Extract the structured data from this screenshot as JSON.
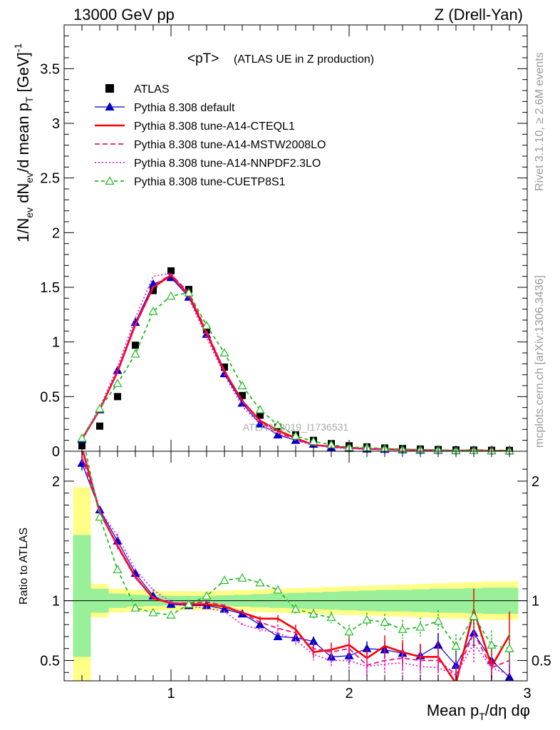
{
  "header": {
    "left": "13000 GeV pp",
    "right": "Z (Drell-Yan)"
  },
  "side_text": {
    "rivet": "Rivet 3.1.10, ≥ 2.6M events",
    "mcplots": "mcplots.cern.ch [arXiv:1306.3436]"
  },
  "watermark": "ATLAS_2019_I1736531",
  "colors": {
    "atlas": "#000000",
    "default": "#0000cc",
    "cteql1": "#ff0000",
    "mstw": "#ee1177",
    "nnpdf": "#dd22dd",
    "cuetp": "#22bb22",
    "band_inner": "#99f099",
    "band_outer": "#ffff88"
  },
  "chart_data": [
    {
      "id": "main",
      "type": "line",
      "title": "<pT>",
      "subtitle": "(ATLAS UE in Z production)",
      "xlabel": "",
      "ylabel": "1/N_ev dN_ev/d mean p_T [GeV]^-1",
      "xlim": [
        0.4,
        3.0
      ],
      "ylim": [
        0,
        3.9
      ],
      "yticks": [
        0,
        0.5,
        1,
        1.5,
        2,
        2.5,
        3,
        3.5
      ],
      "ytick_labels": [
        "0",
        "0.5",
        "1",
        "1.5",
        "2",
        "2.5",
        "3",
        "3.5"
      ],
      "x": [
        0.5,
        0.6,
        0.7,
        0.8,
        0.9,
        1.0,
        1.1,
        1.2,
        1.3,
        1.4,
        1.5,
        1.6,
        1.7,
        1.8,
        1.9,
        2.0,
        2.1,
        2.2,
        2.3,
        2.4,
        2.5,
        2.6,
        2.7,
        2.8,
        2.9
      ],
      "series": [
        {
          "name": "ATLAS",
          "style": "marker-square",
          "color_key": "atlas",
          "values": [
            0.05,
            0.23,
            0.5,
            0.97,
            1.47,
            1.65,
            1.48,
            1.11,
            0.77,
            0.51,
            0.33,
            0.22,
            0.15,
            0.1,
            0.07,
            0.05,
            0.04,
            0.03,
            0.025,
            0.02,
            0.016,
            0.013,
            0.011,
            0.009,
            0.008
          ]
        },
        {
          "name": "Pythia 8.308 default",
          "style": "line-triangle",
          "color_key": "default",
          "values": [
            0.11,
            0.38,
            0.74,
            1.18,
            1.53,
            1.59,
            1.41,
            1.07,
            0.71,
            0.44,
            0.25,
            0.15,
            0.1,
            0.065,
            0.037,
            0.027,
            0.021,
            0.018,
            0.014,
            0.011,
            0.01,
            0.006,
            0.008,
            0.005,
            0.003
          ]
        },
        {
          "name": "Pythia 8.308 tune-A14-CTEQL1",
          "style": "line-solid",
          "color_key": "cteql1",
          "values": [
            0.11,
            0.38,
            0.73,
            1.16,
            1.5,
            1.61,
            1.43,
            1.08,
            0.73,
            0.46,
            0.28,
            0.19,
            0.12,
            0.057,
            0.044,
            0.032,
            0.021,
            0.019,
            0.015,
            0.011,
            0.008,
            0.004,
            0.01,
            0.004,
            0.006
          ]
        },
        {
          "name": "Pythia 8.308 tune-A14-MSTW2008LO",
          "style": "line-dashed",
          "color_key": "mstw",
          "values": [
            0.11,
            0.38,
            0.72,
            1.15,
            1.51,
            1.62,
            1.45,
            1.1,
            0.74,
            0.46,
            0.27,
            0.17,
            0.11,
            0.06,
            0.04,
            0.03,
            0.02,
            0.015,
            0.013,
            0.01,
            0.008,
            0.005,
            0.008,
            0.004,
            0.004
          ]
        },
        {
          "name": "Pythia 8.308 tune-A14-NNPDF2.3LO",
          "style": "line-dotted",
          "color_key": "nnpdf",
          "values": [
            0.12,
            0.4,
            0.77,
            1.22,
            1.6,
            1.63,
            1.4,
            1.04,
            0.7,
            0.41,
            0.25,
            0.16,
            0.1,
            0.055,
            0.035,
            0.025,
            0.018,
            0.014,
            0.012,
            0.009,
            0.007,
            0.005,
            0.007,
            0.004,
            0.003
          ]
        },
        {
          "name": "Pythia 8.308 tune-CUETP8S1",
          "style": "dashed-open-triangle",
          "color_key": "cuetp",
          "values": [
            0.12,
            0.39,
            0.62,
            0.89,
            1.28,
            1.42,
            1.45,
            1.15,
            0.9,
            0.6,
            0.38,
            0.24,
            0.14,
            0.09,
            0.06,
            0.037,
            0.034,
            0.025,
            0.019,
            0.016,
            0.013,
            0.008,
            0.008,
            0.006,
            0.005
          ]
        }
      ]
    },
    {
      "id": "ratio",
      "type": "line",
      "xlabel": "Mean p_T/dη dφ",
      "ylabel": "Ratio to ATLAS",
      "xlim": [
        0.4,
        3.0
      ],
      "ylim": [
        0.33,
        2.25
      ],
      "xticks": [
        1,
        2,
        3
      ],
      "xtick_labels": [
        "1",
        "2",
        "3"
      ],
      "yticks": [
        0.5,
        1,
        2
      ],
      "ytick_labels": [
        "0.5",
        "1",
        "2"
      ],
      "x": [
        0.5,
        0.6,
        0.7,
        0.8,
        0.9,
        1.0,
        1.1,
        1.2,
        1.3,
        1.4,
        1.5,
        1.6,
        1.7,
        1.8,
        1.9,
        2.0,
        2.1,
        2.2,
        2.3,
        2.4,
        2.5,
        2.6,
        2.7,
        2.8,
        2.9
      ],
      "band_edges": [
        0.45,
        0.55,
        0.65,
        0.75,
        0.85,
        0.95,
        1.05,
        1.15,
        1.25,
        1.35,
        1.45,
        1.55,
        1.65,
        1.75,
        1.85,
        1.95,
        2.05,
        2.15,
        2.25,
        2.35,
        2.45,
        2.55,
        2.65,
        2.75,
        2.85,
        2.95
      ],
      "band_inner": [
        [
          0.53,
          1.55
        ],
        [
          0.9,
          1.1
        ],
        [
          0.94,
          1.06
        ],
        [
          0.95,
          1.05
        ],
        [
          0.955,
          1.045
        ],
        [
          0.96,
          1.04
        ],
        [
          0.96,
          1.04
        ],
        [
          0.96,
          1.04
        ],
        [
          0.955,
          1.045
        ],
        [
          0.95,
          1.05
        ],
        [
          0.945,
          1.055
        ],
        [
          0.94,
          1.06
        ],
        [
          0.935,
          1.065
        ],
        [
          0.93,
          1.07
        ],
        [
          0.925,
          1.075
        ],
        [
          0.92,
          1.08
        ],
        [
          0.915,
          1.085
        ],
        [
          0.91,
          1.09
        ],
        [
          0.91,
          1.09
        ],
        [
          0.905,
          1.095
        ],
        [
          0.9,
          1.1
        ],
        [
          0.9,
          1.1
        ],
        [
          0.895,
          1.105
        ],
        [
          0.89,
          1.11
        ],
        [
          0.89,
          1.11
        ]
      ],
      "band_outer": [
        [
          0.3,
          1.95
        ],
        [
          0.86,
          1.14
        ],
        [
          0.9,
          1.1
        ],
        [
          0.91,
          1.09
        ],
        [
          0.915,
          1.085
        ],
        [
          0.92,
          1.08
        ],
        [
          0.92,
          1.08
        ],
        [
          0.92,
          1.08
        ],
        [
          0.915,
          1.085
        ],
        [
          0.91,
          1.09
        ],
        [
          0.905,
          1.095
        ],
        [
          0.9,
          1.1
        ],
        [
          0.895,
          1.105
        ],
        [
          0.89,
          1.11
        ],
        [
          0.885,
          1.115
        ],
        [
          0.88,
          1.12
        ],
        [
          0.875,
          1.125
        ],
        [
          0.87,
          1.13
        ],
        [
          0.865,
          1.135
        ],
        [
          0.86,
          1.14
        ],
        [
          0.855,
          1.145
        ],
        [
          0.85,
          1.15
        ],
        [
          0.845,
          1.155
        ],
        [
          0.84,
          1.16
        ],
        [
          0.84,
          1.16
        ]
      ],
      "series": [
        {
          "name": "Pythia 8.308 default",
          "style": "line-triangle",
          "color_key": "default",
          "values": [
            2.15,
            1.76,
            1.5,
            1.23,
            1.04,
            0.97,
            0.96,
            0.96,
            0.93,
            0.89,
            0.8,
            0.7,
            0.69,
            0.66,
            0.53,
            0.54,
            0.6,
            0.59,
            0.56,
            0.54,
            0.63,
            0.46,
            0.73,
            0.5,
            0.36
          ],
          "errors": [
            0.06,
            0.02,
            0.02,
            0.01,
            0.01,
            0.01,
            0.01,
            0.01,
            0.01,
            0.015,
            0.02,
            0.02,
            0.03,
            0.04,
            0.05,
            0.06,
            0.06,
            0.07,
            0.08,
            0.09,
            0.1,
            0.12,
            0.12,
            0.14,
            0.15
          ]
        },
        {
          "name": "Pythia 8.308 tune-A14-CTEQL1",
          "style": "line-solid",
          "color_key": "cteql1",
          "values": [
            2.28,
            1.74,
            1.46,
            1.2,
            1.02,
            0.98,
            0.97,
            0.97,
            0.95,
            0.9,
            0.85,
            0.85,
            0.76,
            0.57,
            0.59,
            0.63,
            0.52,
            0.62,
            0.57,
            0.53,
            0.53,
            0.31,
            0.92,
            0.45,
            0.71
          ],
          "errors": [
            0.06,
            0.02,
            0.02,
            0.01,
            0.01,
            0.01,
            0.01,
            0.01,
            0.01,
            0.015,
            0.02,
            0.03,
            0.04,
            0.05,
            0.06,
            0.07,
            0.08,
            0.09,
            0.1,
            0.11,
            0.12,
            0.14,
            0.18,
            0.16,
            0.2
          ]
        },
        {
          "name": "Pythia 8.308 tune-A14-MSTW2008LO",
          "style": "line-dashed",
          "color_key": "mstw",
          "values": [
            2.2,
            1.75,
            1.45,
            1.19,
            1.03,
            0.98,
            0.98,
            0.99,
            0.96,
            0.9,
            0.82,
            0.77,
            0.73,
            0.6,
            0.57,
            0.6,
            0.46,
            0.5,
            0.52,
            0.5,
            0.5,
            0.38,
            0.73,
            0.44,
            0.5
          ],
          "errors": [
            0.06,
            0.02,
            0.02,
            0.01,
            0.01,
            0.01,
            0.01,
            0.01,
            0.01,
            0.015,
            0.02,
            0.03,
            0.04,
            0.05,
            0.06,
            0.07,
            0.08,
            0.09,
            0.1,
            0.11,
            0.12,
            0.14,
            0.16,
            0.16,
            0.18
          ]
        },
        {
          "name": "Pythia 8.308 tune-A14-NNPDF2.3LO",
          "style": "line-dotted",
          "color_key": "nnpdf",
          "values": [
            2.3,
            1.76,
            1.54,
            1.26,
            1.09,
            0.99,
            0.95,
            0.94,
            0.91,
            0.8,
            0.76,
            0.73,
            0.67,
            0.55,
            0.5,
            0.5,
            0.45,
            0.47,
            0.48,
            0.45,
            0.44,
            0.38,
            0.64,
            0.44,
            0.38
          ],
          "errors": [
            0.06,
            0.02,
            0.02,
            0.01,
            0.01,
            0.01,
            0.01,
            0.01,
            0.01,
            0.015,
            0.02,
            0.03,
            0.04,
            0.05,
            0.06,
            0.07,
            0.08,
            0.09,
            0.1,
            0.11,
            0.12,
            0.14,
            0.16,
            0.16,
            0.18
          ]
        },
        {
          "name": "Pythia 8.308 tune-CUETP8S1",
          "style": "dashed-open-triangle",
          "color_key": "cuetp",
          "values": [
            2.4,
            1.7,
            1.26,
            0.94,
            0.9,
            0.88,
            0.97,
            1.04,
            1.17,
            1.19,
            1.15,
            1.09,
            0.93,
            0.89,
            0.86,
            0.74,
            0.84,
            0.82,
            0.76,
            0.78,
            0.83,
            0.62,
            0.87,
            0.63,
            0.6
          ],
          "errors": [
            0.06,
            0.02,
            0.02,
            0.01,
            0.01,
            0.01,
            0.01,
            0.01,
            0.015,
            0.02,
            0.025,
            0.03,
            0.04,
            0.04,
            0.05,
            0.06,
            0.06,
            0.07,
            0.08,
            0.08,
            0.09,
            0.1,
            0.11,
            0.12,
            0.13
          ]
        }
      ]
    }
  ]
}
